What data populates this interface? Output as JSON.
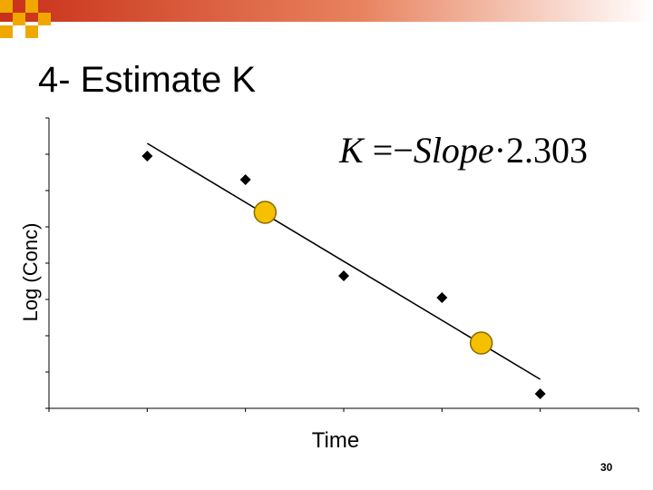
{
  "slide": {
    "title": "4- Estimate K",
    "page_number": "30",
    "banner_colors": [
      "#c83018",
      "#e8825e",
      "#ffffff"
    ],
    "checker_color": "#f0a800"
  },
  "formula": {
    "lhs": "K",
    "op": "=",
    "minus": "−",
    "word": "Slope",
    "dot": "·",
    "constant": "2.303"
  },
  "chart_data": {
    "type": "scatter",
    "title": "",
    "xlabel": "Time",
    "ylabel": "Log (Conc)",
    "xlim": [
      0,
      6
    ],
    "ylim": [
      0,
      8
    ],
    "grid": false,
    "tick_labels_legible": false,
    "series": [
      {
        "marker": "diamond",
        "color": "#000000",
        "points": [
          [
            1.0,
            6.95
          ],
          [
            2.0,
            6.3
          ],
          [
            3.0,
            3.65
          ],
          [
            4.0,
            3.05
          ],
          [
            5.0,
            0.4
          ]
        ]
      },
      {
        "marker": "circle",
        "color": "#f5c000",
        "points": [
          [
            2.2,
            5.4
          ],
          [
            4.4,
            1.8
          ]
        ]
      }
    ],
    "trendline": {
      "x": [
        1.0,
        5.0
      ],
      "y": [
        7.3,
        0.8
      ],
      "color": "#000000"
    }
  }
}
